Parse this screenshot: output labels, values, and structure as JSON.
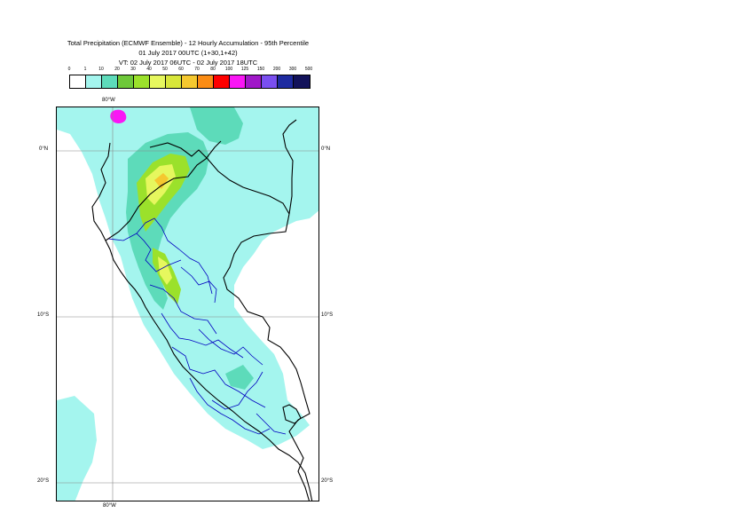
{
  "title": {
    "line1": "Total Precipitation (ECMWF Ensemble) - 12 Hourly Accumulation - 95th Percentile",
    "line2": "01 July 2017 00UTC (1+30,1+42)",
    "line3": "VT: 02 July 2017 06UTC - 02 July 2017 18UTC"
  },
  "legend": {
    "ticks": [
      "0",
      "1",
      "10",
      "20",
      "30",
      "40",
      "50",
      "60",
      "70",
      "80",
      "100",
      "125",
      "150",
      "200",
      "300",
      "500"
    ],
    "colors": [
      "#ffffff",
      "#a4f5ee",
      "#5ddbba",
      "#6ec83a",
      "#9be12b",
      "#e6f75e",
      "#d8e63a",
      "#f5c82f",
      "#fb8c14",
      "#ff0000",
      "#fa16f5",
      "#a018c8",
      "#7a4ff0",
      "#1e2ba0",
      "#12125a"
    ]
  },
  "map": {
    "lon_labels": {
      "top": "80°W",
      "bottom": "80°W"
    },
    "lat_labels": [
      "0°N",
      "10°S",
      "20°S"
    ],
    "palette": {
      "light": "#a4f5ee",
      "teal": "#5ddbba",
      "green": "#9be12b",
      "yellow": "#e6f75e",
      "orange": "#f5c82f",
      "magenta": "#fa16f5"
    }
  }
}
